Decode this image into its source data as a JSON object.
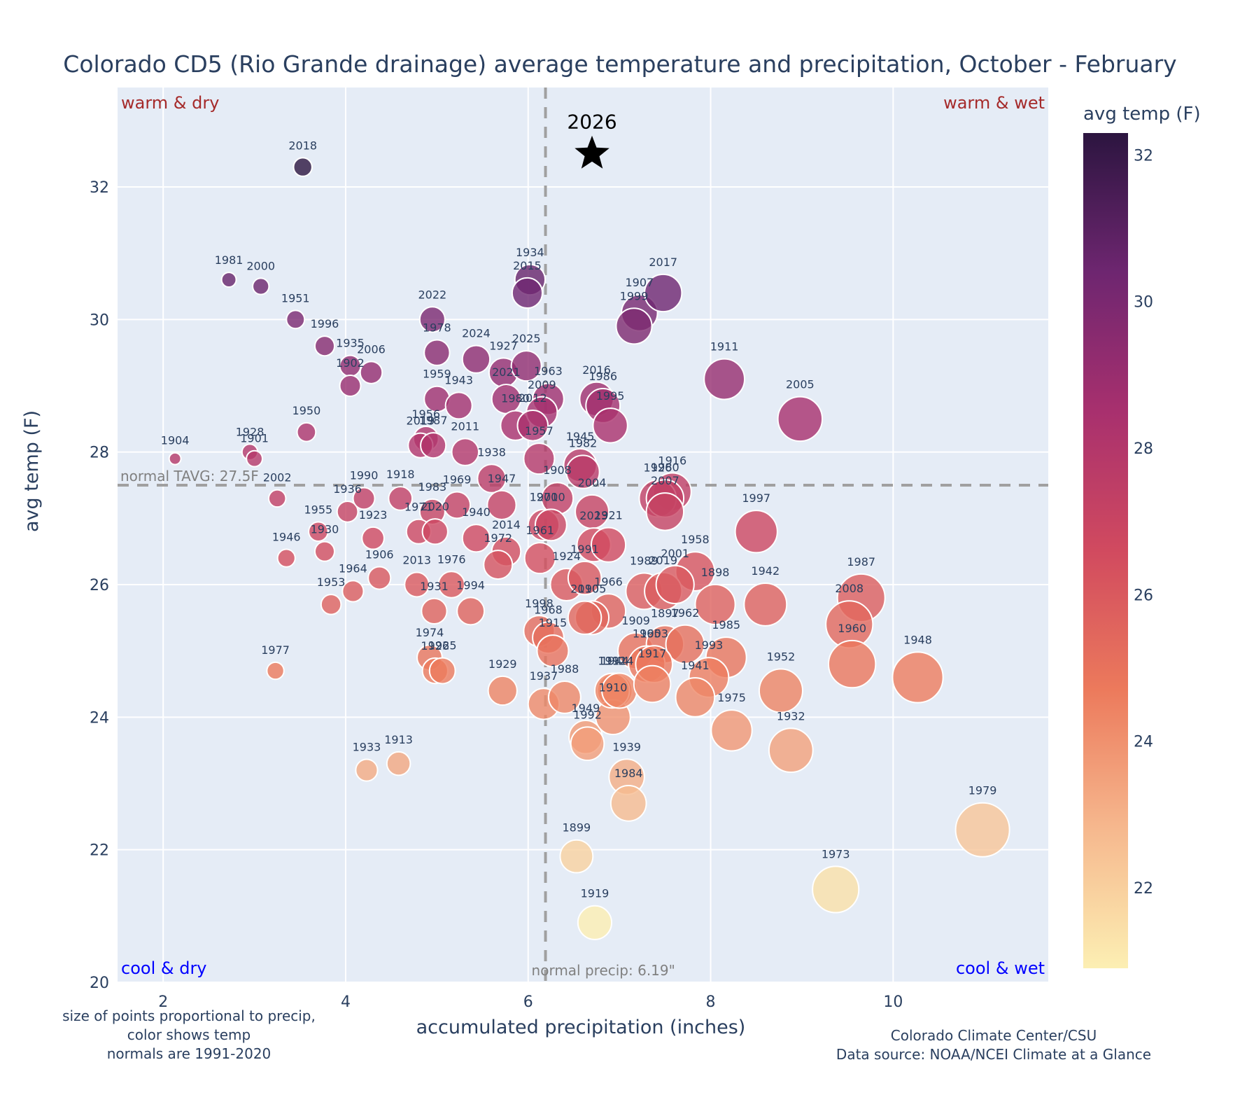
{
  "chart_data": {
    "type": "scatter",
    "title": "Colorado CD5 (Rio Grande drainage) average temperature and precipitation, October - February",
    "xlabel": "accumulated precipitation (inches)",
    "ylabel": "avg temp (F)",
    "xlim": [
      1.5,
      11.7
    ],
    "ylim": [
      20,
      33.5
    ],
    "xticks": [
      2,
      4,
      6,
      8,
      10
    ],
    "yticks": [
      20,
      22,
      24,
      26,
      28,
      30,
      32
    ],
    "grid": true,
    "colorbar": {
      "title": "avg temp (F)",
      "range": [
        20.9,
        32.3
      ],
      "ticks": [
        22,
        24,
        26,
        28,
        30,
        32
      ],
      "colorscale": [
        "#fcefb3",
        "#f6b88e",
        "#ec7a5c",
        "#d14a5f",
        "#a8306e",
        "#6e2670",
        "#2c1540"
      ]
    },
    "normals": {
      "precip": 6.19,
      "precip_label": "normal precip: 6.19\"",
      "tavg": 27.5,
      "tavg_label": "normal TAVG: 27.5F"
    },
    "quadrant_labels": {
      "top_left": "warm & dry",
      "top_right": "warm & wet",
      "bottom_left": "cool & dry",
      "bottom_right": "cool & wet"
    },
    "highlight": {
      "label": "2026",
      "x": 6.7,
      "y": 32.5,
      "marker": "star"
    },
    "points": [
      {
        "year": "2018",
        "x": 3.53,
        "y": 32.3
      },
      {
        "year": "1981",
        "x": 2.72,
        "y": 30.6
      },
      {
        "year": "2000",
        "x": 3.07,
        "y": 30.5
      },
      {
        "year": "1951",
        "x": 3.45,
        "y": 30.0
      },
      {
        "year": "1996",
        "x": 3.77,
        "y": 29.6
      },
      {
        "year": "1935",
        "x": 4.05,
        "y": 29.3
      },
      {
        "year": "2006",
        "x": 4.28,
        "y": 29.2
      },
      {
        "year": "1902",
        "x": 4.05,
        "y": 29.0
      },
      {
        "year": "1950",
        "x": 3.57,
        "y": 28.3
      },
      {
        "year": "1904",
        "x": 2.13,
        "y": 27.9
      },
      {
        "year": "1928",
        "x": 2.95,
        "y": 28.0
      },
      {
        "year": "1901",
        "x": 3.0,
        "y": 27.9
      },
      {
        "year": "2002",
        "x": 3.25,
        "y": 27.3
      },
      {
        "year": "1936",
        "x": 4.02,
        "y": 27.1
      },
      {
        "year": "1990",
        "x": 4.2,
        "y": 27.3
      },
      {
        "year": "1955",
        "x": 3.7,
        "y": 26.8
      },
      {
        "year": "1930",
        "x": 3.77,
        "y": 26.5
      },
      {
        "year": "1923",
        "x": 4.3,
        "y": 26.7
      },
      {
        "year": "1946",
        "x": 3.35,
        "y": 26.4
      },
      {
        "year": "1906",
        "x": 4.37,
        "y": 26.1
      },
      {
        "year": "1964",
        "x": 4.08,
        "y": 25.9
      },
      {
        "year": "1953",
        "x": 3.84,
        "y": 25.7
      },
      {
        "year": "1977",
        "x": 3.23,
        "y": 24.7
      },
      {
        "year": "1933",
        "x": 4.23,
        "y": 23.2
      },
      {
        "year": "1913",
        "x": 4.58,
        "y": 23.3
      },
      {
        "year": "1918",
        "x": 4.6,
        "y": 27.3
      },
      {
        "year": "1983",
        "x": 4.95,
        "y": 27.1
      },
      {
        "year": "1971",
        "x": 4.8,
        "y": 26.8
      },
      {
        "year": "2020",
        "x": 4.98,
        "y": 26.8
      },
      {
        "year": "2013",
        "x": 4.78,
        "y": 26.0
      },
      {
        "year": "1976",
        "x": 5.16,
        "y": 26.0
      },
      {
        "year": "1931",
        "x": 4.97,
        "y": 25.6
      },
      {
        "year": "1994",
        "x": 5.37,
        "y": 25.6
      },
      {
        "year": "1974",
        "x": 4.92,
        "y": 24.9
      },
      {
        "year": "1926",
        "x": 4.98,
        "y": 24.7
      },
      {
        "year": "1925",
        "x": 5.06,
        "y": 24.7
      },
      {
        "year": "2022",
        "x": 4.95,
        "y": 30.0
      },
      {
        "year": "1978",
        "x": 5.0,
        "y": 29.5
      },
      {
        "year": "2024",
        "x": 5.43,
        "y": 29.4
      },
      {
        "year": "1959",
        "x": 5.0,
        "y": 28.8
      },
      {
        "year": "1943",
        "x": 5.24,
        "y": 28.7
      },
      {
        "year": "1956",
        "x": 4.88,
        "y": 28.2
      },
      {
        "year": "2019b",
        "x": 4.82,
        "y": 28.1
      },
      {
        "year": "1987",
        "x": 4.96,
        "y": 28.1
      },
      {
        "year": "2011",
        "x": 5.31,
        "y": 28.0
      },
      {
        "year": "1938",
        "x": 5.6,
        "y": 27.6
      },
      {
        "year": "1969",
        "x": 5.22,
        "y": 27.2
      },
      {
        "year": "1947",
        "x": 5.71,
        "y": 27.2
      },
      {
        "year": "1940",
        "x": 5.43,
        "y": 26.7
      },
      {
        "year": "2014",
        "x": 5.76,
        "y": 26.5
      },
      {
        "year": "1972",
        "x": 5.67,
        "y": 26.3
      },
      {
        "year": "1929",
        "x": 5.72,
        "y": 24.4
      },
      {
        "year": "1934",
        "x": 6.02,
        "y": 30.6
      },
      {
        "year": "2015",
        "x": 5.99,
        "y": 30.4
      },
      {
        "year": "1927",
        "x": 5.73,
        "y": 29.2
      },
      {
        "year": "2025",
        "x": 5.98,
        "y": 29.3
      },
      {
        "year": "2021",
        "x": 5.76,
        "y": 28.8
      },
      {
        "year": "1963",
        "x": 6.22,
        "y": 28.8
      },
      {
        "year": "1980b",
        "x": 5.86,
        "y": 28.4
      },
      {
        "year": "2009",
        "x": 6.15,
        "y": 28.6
      },
      {
        "year": "2012",
        "x": 6.05,
        "y": 28.4
      },
      {
        "year": "1957",
        "x": 6.12,
        "y": 27.9
      },
      {
        "year": "1908",
        "x": 6.32,
        "y": 27.3
      },
      {
        "year": "1970",
        "x": 6.17,
        "y": 26.9
      },
      {
        "year": "2010",
        "x": 6.25,
        "y": 26.9
      },
      {
        "year": "1961",
        "x": 6.13,
        "y": 26.4
      },
      {
        "year": "1924",
        "x": 6.42,
        "y": 26.0
      },
      {
        "year": "1998",
        "x": 6.12,
        "y": 25.3
      },
      {
        "year": "1968",
        "x": 6.22,
        "y": 25.2
      },
      {
        "year": "1915",
        "x": 6.27,
        "y": 25.0
      },
      {
        "year": "1937",
        "x": 6.17,
        "y": 24.2
      },
      {
        "year": "1988",
        "x": 6.4,
        "y": 24.3
      },
      {
        "year": "1945",
        "x": 6.57,
        "y": 27.8
      },
      {
        "year": "1982",
        "x": 6.6,
        "y": 27.7
      },
      {
        "year": "2016",
        "x": 6.75,
        "y": 28.8
      },
      {
        "year": "1986",
        "x": 6.82,
        "y": 28.7
      },
      {
        "year": "1995",
        "x": 6.9,
        "y": 28.4
      },
      {
        "year": "2004",
        "x": 6.7,
        "y": 27.1
      },
      {
        "year": "2023",
        "x": 6.72,
        "y": 26.6
      },
      {
        "year": "1921",
        "x": 6.88,
        "y": 26.6
      },
      {
        "year": "1991",
        "x": 6.62,
        "y": 26.1
      },
      {
        "year": "1966",
        "x": 6.88,
        "y": 25.6
      },
      {
        "year": "1905",
        "x": 6.7,
        "y": 25.5
      },
      {
        "year": "2010b",
        "x": 6.62,
        "y": 25.5
      },
      {
        "year": "1909",
        "x": 7.18,
        "y": 25.0
      },
      {
        "year": "1949",
        "x": 6.63,
        "y": 23.7
      },
      {
        "year": "1992",
        "x": 6.65,
        "y": 23.6
      },
      {
        "year": "1944",
        "x": 6.95,
        "y": 24.4
      },
      {
        "year": "1910",
        "x": 6.93,
        "y": 24.0
      },
      {
        "year": "1912",
        "x": 6.92,
        "y": 24.4
      },
      {
        "year": "1914",
        "x": 7.0,
        "y": 24.4
      },
      {
        "year": "1939",
        "x": 7.08,
        "y": 23.1
      },
      {
        "year": "1984",
        "x": 7.1,
        "y": 22.7
      },
      {
        "year": "1899",
        "x": 6.53,
        "y": 21.9
      },
      {
        "year": "1919",
        "x": 6.73,
        "y": 20.9
      },
      {
        "year": "1907",
        "x": 7.22,
        "y": 30.1
      },
      {
        "year": "1999",
        "x": 7.16,
        "y": 29.9
      },
      {
        "year": "2017",
        "x": 7.48,
        "y": 30.4
      },
      {
        "year": "1911",
        "x": 8.15,
        "y": 29.1
      },
      {
        "year": "2005",
        "x": 8.98,
        "y": 28.5
      },
      {
        "year": "1916",
        "x": 7.58,
        "y": 27.4
      },
      {
        "year": "1926b",
        "x": 7.42,
        "y": 27.3
      },
      {
        "year": "1980",
        "x": 7.5,
        "y": 27.3
      },
      {
        "year": "2007",
        "x": 7.5,
        "y": 27.1
      },
      {
        "year": "1997",
        "x": 8.5,
        "y": 26.8
      },
      {
        "year": "1958",
        "x": 7.83,
        "y": 26.2
      },
      {
        "year": "1989",
        "x": 7.27,
        "y": 25.9
      },
      {
        "year": "2019",
        "x": 7.48,
        "y": 25.9
      },
      {
        "year": "2001",
        "x": 7.61,
        "y": 26.0
      },
      {
        "year": "1898",
        "x": 8.05,
        "y": 25.7
      },
      {
        "year": "1942",
        "x": 8.6,
        "y": 25.7
      },
      {
        "year": "1897",
        "x": 7.5,
        "y": 25.1
      },
      {
        "year": "1962",
        "x": 7.72,
        "y": 25.1
      },
      {
        "year": "1965",
        "x": 7.3,
        "y": 24.8
      },
      {
        "year": "1903",
        "x": 7.38,
        "y": 24.8
      },
      {
        "year": "1917",
        "x": 7.36,
        "y": 24.5
      },
      {
        "year": "1985",
        "x": 8.17,
        "y": 24.9
      },
      {
        "year": "1993",
        "x": 7.98,
        "y": 24.6
      },
      {
        "year": "1941",
        "x": 7.83,
        "y": 24.3
      },
      {
        "year": "1975",
        "x": 8.23,
        "y": 23.8
      },
      {
        "year": "1952",
        "x": 8.77,
        "y": 24.4
      },
      {
        "year": "1932",
        "x": 8.88,
        "y": 23.5
      },
      {
        "year": "1987b",
        "x": 9.65,
        "y": 25.8
      },
      {
        "year": "2008",
        "x": 9.52,
        "y": 25.4
      },
      {
        "year": "1960",
        "x": 9.55,
        "y": 24.8
      },
      {
        "year": "1948",
        "x": 10.27,
        "y": 24.6
      },
      {
        "year": "1973",
        "x": 9.37,
        "y": 21.4
      },
      {
        "year": "1979",
        "x": 10.98,
        "y": 22.3
      }
    ]
  },
  "notes": {
    "footnote_left": [
      "size of points proportional to precip,",
      "color shows temp",
      "normals are 1991-2020"
    ],
    "footnote_right": [
      "Colorado Climate Center/CSU",
      "Data source: NOAA/NCEI Climate at a Glance"
    ]
  },
  "colors": {
    "plot_bg": "#e5ecf6",
    "grid": "#ffffff",
    "warm_label": "#a52a2a",
    "cool_label": "#0000ff",
    "normal_line": "#a0a0a0"
  }
}
